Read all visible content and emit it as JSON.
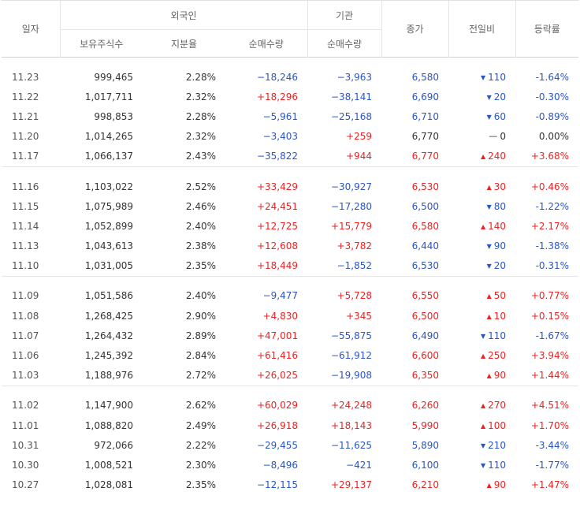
{
  "headers": {
    "date": "일자",
    "foreign": "외국인",
    "holdings": "보유주식수",
    "ratio": "지분율",
    "net_foreign": "순매수량",
    "institution": "기관",
    "net_inst": "순매수량",
    "close": "종가",
    "change": "전일비",
    "rate": "등락률"
  },
  "colors": {
    "up": "#ee2222",
    "down": "#2a55c7"
  },
  "groups": [
    [
      {
        "date": "11.23",
        "holdings": "999,465",
        "ratio": "2.28%",
        "foreign": "−18,246",
        "fdir": "down",
        "inst": "−3,963",
        "idir": "down",
        "close": "6,580",
        "cdir": "down",
        "change": "110",
        "dir": "down",
        "rate": "-1.64%"
      },
      {
        "date": "11.22",
        "holdings": "1,017,711",
        "ratio": "2.32%",
        "foreign": "+18,296",
        "fdir": "up",
        "inst": "−38,141",
        "idir": "down",
        "close": "6,690",
        "cdir": "down",
        "change": "20",
        "dir": "down",
        "rate": "-0.30%"
      },
      {
        "date": "11.21",
        "holdings": "998,853",
        "ratio": "2.28%",
        "foreign": "−5,961",
        "fdir": "down",
        "inst": "−25,168",
        "idir": "down",
        "close": "6,710",
        "cdir": "down",
        "change": "60",
        "dir": "down",
        "rate": "-0.89%"
      },
      {
        "date": "11.20",
        "holdings": "1,014,265",
        "ratio": "2.32%",
        "foreign": "−3,403",
        "fdir": "down",
        "inst": "+259",
        "idir": "up",
        "close": "6,770",
        "cdir": "flat",
        "change": "0",
        "dir": "flat",
        "rate": "0.00%"
      },
      {
        "date": "11.17",
        "holdings": "1,066,137",
        "ratio": "2.43%",
        "foreign": "−35,822",
        "fdir": "down",
        "inst": "+944",
        "idir": "up",
        "close": "6,770",
        "cdir": "up",
        "change": "240",
        "dir": "up",
        "rate": "+3.68%"
      }
    ],
    [
      {
        "date": "11.16",
        "holdings": "1,103,022",
        "ratio": "2.52%",
        "foreign": "+33,429",
        "fdir": "up",
        "inst": "−30,927",
        "idir": "down",
        "close": "6,530",
        "cdir": "up",
        "change": "30",
        "dir": "up",
        "rate": "+0.46%"
      },
      {
        "date": "11.15",
        "holdings": "1,075,989",
        "ratio": "2.46%",
        "foreign": "+24,451",
        "fdir": "up",
        "inst": "−17,280",
        "idir": "down",
        "close": "6,500",
        "cdir": "down",
        "change": "80",
        "dir": "down",
        "rate": "-1.22%"
      },
      {
        "date": "11.14",
        "holdings": "1,052,899",
        "ratio": "2.40%",
        "foreign": "+12,725",
        "fdir": "up",
        "inst": "+15,779",
        "idir": "up",
        "close": "6,580",
        "cdir": "up",
        "change": "140",
        "dir": "up",
        "rate": "+2.17%"
      },
      {
        "date": "11.13",
        "holdings": "1,043,613",
        "ratio": "2.38%",
        "foreign": "+12,608",
        "fdir": "up",
        "inst": "+3,782",
        "idir": "up",
        "close": "6,440",
        "cdir": "down",
        "change": "90",
        "dir": "down",
        "rate": "-1.38%"
      },
      {
        "date": "11.10",
        "holdings": "1,031,005",
        "ratio": "2.35%",
        "foreign": "+18,449",
        "fdir": "up",
        "inst": "−1,852",
        "idir": "down",
        "close": "6,530",
        "cdir": "down",
        "change": "20",
        "dir": "down",
        "rate": "-0.31%"
      }
    ],
    [
      {
        "date": "11.09",
        "holdings": "1,051,586",
        "ratio": "2.40%",
        "foreign": "−9,477",
        "fdir": "down",
        "inst": "+5,728",
        "idir": "up",
        "close": "6,550",
        "cdir": "up",
        "change": "50",
        "dir": "up",
        "rate": "+0.77%"
      },
      {
        "date": "11.08",
        "holdings": "1,268,425",
        "ratio": "2.90%",
        "foreign": "+4,830",
        "fdir": "up",
        "inst": "+345",
        "idir": "up",
        "close": "6,500",
        "cdir": "up",
        "change": "10",
        "dir": "up",
        "rate": "+0.15%"
      },
      {
        "date": "11.07",
        "holdings": "1,264,432",
        "ratio": "2.89%",
        "foreign": "+47,001",
        "fdir": "up",
        "inst": "−55,875",
        "idir": "down",
        "close": "6,490",
        "cdir": "down",
        "change": "110",
        "dir": "down",
        "rate": "-1.67%"
      },
      {
        "date": "11.06",
        "holdings": "1,245,392",
        "ratio": "2.84%",
        "foreign": "+61,416",
        "fdir": "up",
        "inst": "−61,912",
        "idir": "down",
        "close": "6,600",
        "cdir": "up",
        "change": "250",
        "dir": "up",
        "rate": "+3.94%"
      },
      {
        "date": "11.03",
        "holdings": "1,188,976",
        "ratio": "2.72%",
        "foreign": "+26,025",
        "fdir": "up",
        "inst": "−19,908",
        "idir": "down",
        "close": "6,350",
        "cdir": "up",
        "change": "90",
        "dir": "up",
        "rate": "+1.44%"
      }
    ],
    [
      {
        "date": "11.02",
        "holdings": "1,147,900",
        "ratio": "2.62%",
        "foreign": "+60,029",
        "fdir": "up",
        "inst": "+24,248",
        "idir": "up",
        "close": "6,260",
        "cdir": "up",
        "change": "270",
        "dir": "up",
        "rate": "+4.51%"
      },
      {
        "date": "11.01",
        "holdings": "1,088,820",
        "ratio": "2.49%",
        "foreign": "+26,918",
        "fdir": "up",
        "inst": "+18,143",
        "idir": "up",
        "close": "5,990",
        "cdir": "up",
        "change": "100",
        "dir": "up",
        "rate": "+1.70%"
      },
      {
        "date": "10.31",
        "holdings": "972,066",
        "ratio": "2.22%",
        "foreign": "−29,455",
        "fdir": "down",
        "inst": "−11,625",
        "idir": "down",
        "close": "5,890",
        "cdir": "down",
        "change": "210",
        "dir": "down",
        "rate": "-3.44%"
      },
      {
        "date": "10.30",
        "holdings": "1,008,521",
        "ratio": "2.30%",
        "foreign": "−8,496",
        "fdir": "down",
        "inst": "−421",
        "idir": "down",
        "close": "6,100",
        "cdir": "down",
        "change": "110",
        "dir": "down",
        "rate": "-1.77%"
      },
      {
        "date": "10.27",
        "holdings": "1,028,081",
        "ratio": "2.35%",
        "foreign": "−12,115",
        "fdir": "down",
        "inst": "+29,137",
        "idir": "up",
        "close": "6,210",
        "cdir": "up",
        "change": "90",
        "dir": "up",
        "rate": "+1.47%"
      }
    ]
  ]
}
